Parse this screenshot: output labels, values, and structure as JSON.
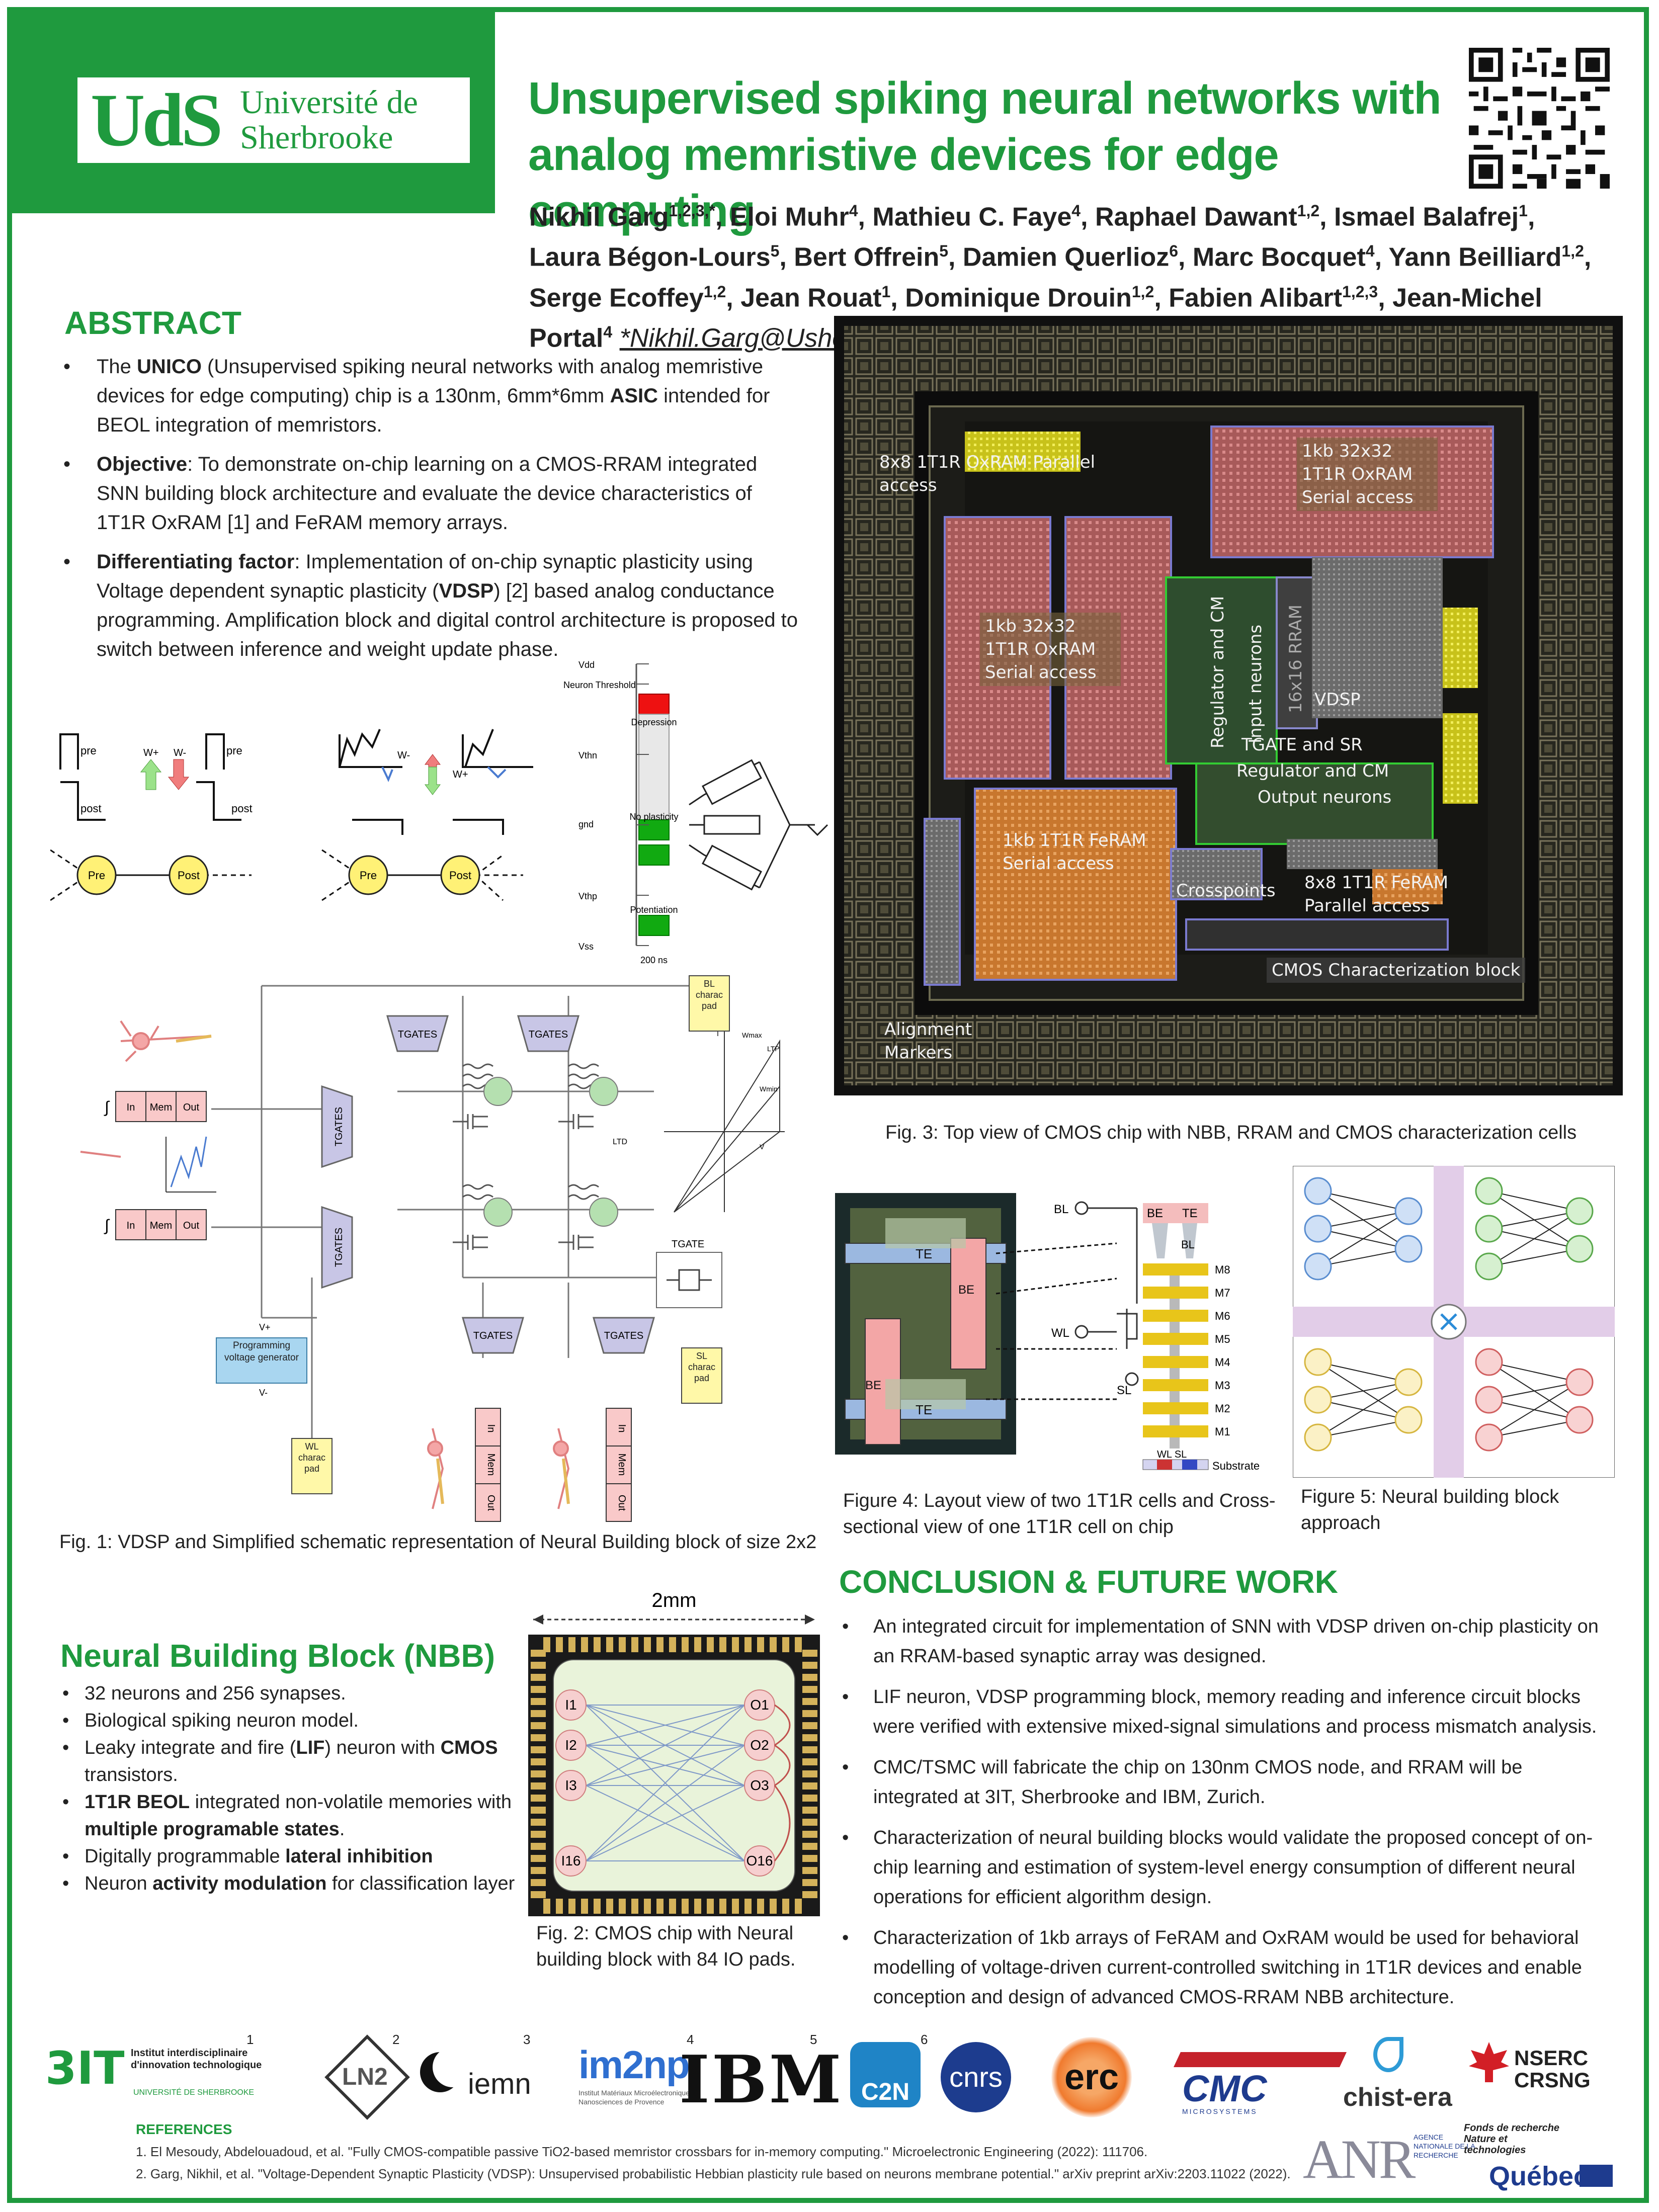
{
  "header": {
    "logo_mark": "UdS",
    "logo_name_line1": "Université de",
    "logo_name_line2": "Sherbrooke",
    "title_line1": "Unsupervised spiking neural networks with",
    "title_line2": "analog memristive devices for edge computing",
    "authors_html_line1": "Nikhil Garg",
    "email": "*Nikhil.Garg@Usherbrooke.ca"
  },
  "authors": [
    {
      "name": "Nikhil Garg",
      "aff": "1,2,3,*"
    },
    {
      "name": "Eloi Muhr",
      "aff": "4"
    },
    {
      "name": "Mathieu C. Faye",
      "aff": "4"
    },
    {
      "name": "Raphael Dawant",
      "aff": "1,2"
    },
    {
      "name": "Ismael Balafrej",
      "aff": "1"
    },
    {
      "name": "Laura Bégon-Lours",
      "aff": "5"
    },
    {
      "name": "Bert Offrein",
      "aff": "5"
    },
    {
      "name": "Damien Querlioz",
      "aff": "6"
    },
    {
      "name": "Marc Bocquet",
      "aff": "4"
    },
    {
      "name": "Yann Beilliard",
      "aff": "1,2"
    },
    {
      "name": "Serge Ecoffey",
      "aff": "1,2"
    },
    {
      "name": "Jean Rouat",
      "aff": "1"
    },
    {
      "name": "Dominique Drouin",
      "aff": "1,2"
    },
    {
      "name": "Fabien Alibart",
      "aff": "1,2,3"
    },
    {
      "name": "Jean-Michel Portal",
      "aff": "4"
    }
  ],
  "abstract": {
    "heading": "ABSTRACT",
    "b1_pre": "The ",
    "b1_bold": "UNICO",
    "b1_mid": " (Unsupervised spiking neural networks with analog memristive devices for edge computing) chip is a 130nm, 6mm*6mm ",
    "b1_bold2": "ASIC",
    "b1_post": " intended for BEOL integration of memristors.",
    "b2_bold": "Objective",
    "b2_text": ": To demonstrate on-chip learning on a CMOS-RRAM integrated SNN building block architecture and evaluate the device characteristics of 1T1R OxRAM [1] and FeRAM memory arrays.",
    "b3_bold": "Differentiating factor",
    "b3_text1": ": Implementation of on-chip synaptic plasticity using Voltage dependent synaptic plasticity (",
    "b3_bold2": "VDSP",
    "b3_text2": ") [2] based analog conductance programming. Amplification block and digital control architecture is proposed to switch between inference and weight update phase."
  },
  "fig1": {
    "caption": "Fig. 1:  VDSP and Simplified schematic representation of Neural Building block of size 2x2",
    "labels": {
      "pre": "pre",
      "post": "post",
      "w_plus": "W+",
      "w_minus": "W-",
      "pre_node": "Pre",
      "post_node": "Post",
      "vdd": "Vdd",
      "neuron_threshold": "Neuron Threshold",
      "vthn": "Vthn",
      "gnd": "gnd",
      "vthp": "Vthp",
      "vss": "Vss",
      "depression": "Depression",
      "no_plasticity": "No plasticity",
      "potentiation": "Potentiation",
      "time": "200 ns",
      "tgates": "TGATES",
      "tgate": "TGATE",
      "bl_pad": "BL charac pad",
      "sl_pad": "SL charac pad",
      "wl_pad": "WL charac pad",
      "in": "In",
      "mem": "Mem",
      "out": "Out",
      "pvg_vplus": "V+",
      "pvg": "Programming voltage generator",
      "pvg_vminus": "V-",
      "ltd": "LTD",
      "ltp": "LTP",
      "wmax": "Wmax",
      "wmin": "Wmin",
      "i": "I",
      "v": "V"
    }
  },
  "nbb": {
    "heading": "Neural Building Block (NBB)",
    "items": [
      {
        "parts": [
          {
            "t": "32 neurons and 256 synapses."
          }
        ]
      },
      {
        "parts": [
          {
            "t": "Biological spiking neuron model."
          }
        ]
      },
      {
        "parts": [
          {
            "t": "Leaky integrate and fire ("
          },
          {
            "t": "LIF",
            "b": true
          },
          {
            "t": ") neuron with "
          },
          {
            "t": "CMOS",
            "b": true
          },
          {
            "t": " transistors."
          }
        ]
      },
      {
        "parts": [
          {
            "t": "1T1R BEOL",
            "b": true
          },
          {
            "t": " integrated non-volatile memories with "
          },
          {
            "t": "multiple programable states",
            "b": true
          },
          {
            "t": "."
          }
        ]
      },
      {
        "parts": [
          {
            "t": "Digitally programmable "
          },
          {
            "t": "lateral inhibition",
            "b": true
          }
        ]
      },
      {
        "parts": [
          {
            "t": "Neuron "
          },
          {
            "t": "activity modulation",
            "b": true
          },
          {
            "t": " for classification layer"
          }
        ]
      }
    ]
  },
  "fig2": {
    "caption": "Fig. 2: CMOS chip with Neural building block with 84 IO pads.",
    "scale": "2mm",
    "inputs": [
      "I1",
      "I2",
      "I3",
      "I16"
    ],
    "outputs": [
      "O1",
      "O2",
      "O3",
      "O16"
    ]
  },
  "fig3": {
    "caption": "Fig. 3: Top view of CMOS chip with NBB, RRAM and CMOS characterization cells",
    "labels": {
      "oxram_parallel": "8x8 1T1R OxRAM Parallel access",
      "oxram_serial_top": "1kb 32x32 1T1R OxRAM Serial access",
      "oxram_serial_left": "1kb 32x32 1T1R OxRAM Serial access",
      "regulator_cm_v": "Regulator and CM",
      "input_neurons": "Input neurons",
      "rram16": "16x16 RRAM",
      "vdsp": "VDSP",
      "tgate_sr": "TGATE and SR",
      "regulator_cm": "Regulator and CM",
      "output_neurons": "Output neurons",
      "feram_serial": "1kb 1T1R FeRAM Serial access",
      "crosspoints": "Crosspoints",
      "feram_parallel": "8x8 1T1R FeRAM Parallel access",
      "cmos_char": "CMOS Characterization block",
      "alignment": "Alignment Markers"
    }
  },
  "fig4": {
    "caption": "Figure 4:  Layout view of two 1T1R cells and Cross-sectional view of one 1T1R cell on chip",
    "labels": {
      "te": "TE",
      "be": "BE",
      "bl": "BL",
      "wl": "WL",
      "sl": "SL",
      "substrate": "Substrate",
      "wl_sl": "WL SL",
      "metals": [
        "M8",
        "M7",
        "M6",
        "M5",
        "M4",
        "M3",
        "M2",
        "M1"
      ]
    }
  },
  "fig5": {
    "caption": "Figure 5:  Neural building block approach"
  },
  "conclusion": {
    "heading": "CONCLUSION & FUTURE WORK",
    "items": [
      "An integrated circuit for implementation of SNN with VDSP driven on-chip plasticity on an RRAM-based synaptic array was designed.",
      "LIF neuron, VDSP programming block, memory reading and inference circuit blocks were verified with extensive mixed-signal simulations and process mismatch analysis.",
      "CMC/TSMC will fabricate the chip on 130nm CMOS node, and RRAM will be integrated at 3IT, Sherbrooke and IBM, Zurich.",
      "Characterization of neural building blocks would validate the proposed concept of on-chip learning and estimation of system-level energy consumption of different neural operations for efficient algorithm design.",
      "Characterization of 1kb arrays of FeRAM and OxRAM would be used for behavioral modelling of voltage-driven current-controlled switching in 1T1R devices and enable conception and design of advanced CMOS-RRAM NBB architecture."
    ]
  },
  "logos": {
    "n1": "1",
    "n2": "2",
    "n3": "3",
    "n4": "4",
    "n5": "5",
    "n6": "6",
    "threeit": "3IT",
    "threeit_text": "Institut interdisciplinaire d'innovation technologique",
    "threeit_sub": "UNIVERSITÉ DE SHERBROOKE",
    "ln2": "LN2",
    "iemn": "iemn",
    "im2np": "im2np",
    "im2np_sub": "Institut Matériaux Microélectronique Nanosciences de Provence",
    "ibm": "IBM",
    "c2n": "C2N",
    "cnrs": "cnrs",
    "erc": "erc",
    "cmc": "CMC",
    "cmc_sub": "MICROSYSTEMS",
    "chistera": "chist-era",
    "nserc": "NSERC",
    "crsng": "CRSNG",
    "anr": "ANR",
    "anr_sub": "AGENCE NATIONALE DE LA RECHERCHE",
    "frq": "Fonds de recherche Nature et technologies",
    "quebec": "Québec"
  },
  "references": {
    "heading": "REFERENCES",
    "items": [
      "1. El Mesoudy, Abdelouadoud, et al. \"Fully CMOS-compatible passive TiO2-based memristor crossbars for in-memory computing.\" Microelectronic Engineering (2022): 111706.",
      "2. Garg, Nikhil, et al. \"Voltage-Dependent Synaptic Plasticity (VDSP): Unsupervised probabilistic Hebbian plasticity rule based on neurons membrane potential.\" arXiv preprint arXiv:2203.11022 (2022)."
    ]
  },
  "colors": {
    "brand": "#1f9a3e"
  }
}
